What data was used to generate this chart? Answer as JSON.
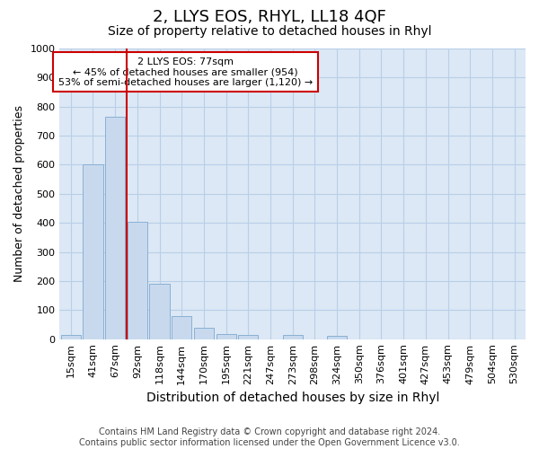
{
  "title": "2, LLYS EOS, RHYL, LL18 4QF",
  "subtitle": "Size of property relative to detached houses in Rhyl",
  "xlabel": "Distribution of detached houses by size in Rhyl",
  "ylabel": "Number of detached properties",
  "categories": [
    "15sqm",
    "41sqm",
    "67sqm",
    "92sqm",
    "118sqm",
    "144sqm",
    "170sqm",
    "195sqm",
    "221sqm",
    "247sqm",
    "273sqm",
    "298sqm",
    "324sqm",
    "350sqm",
    "376sqm",
    "401sqm",
    "427sqm",
    "453sqm",
    "479sqm",
    "504sqm",
    "530sqm"
  ],
  "values": [
    15,
    600,
    765,
    405,
    190,
    78,
    40,
    18,
    15,
    0,
    13,
    0,
    10,
    0,
    0,
    0,
    0,
    0,
    0,
    0,
    0
  ],
  "bar_color": "#c8d9ee",
  "bar_edgecolor": "#8ab0d4",
  "ylim_max": 1000,
  "yticks": [
    0,
    100,
    200,
    300,
    400,
    500,
    600,
    700,
    800,
    900,
    1000
  ],
  "vline_x": 2.5,
  "vline_color": "#cc0000",
  "annotation_line1": "2 LLYS EOS: 77sqm",
  "annotation_line2": "← 45% of detached houses are smaller (954)",
  "annotation_line3": "53% of semi-detached houses are larger (1,120) →",
  "annotation_box_edgecolor": "#cc0000",
  "footer_line1": "Contains HM Land Registry data © Crown copyright and database right 2024.",
  "footer_line2": "Contains public sector information licensed under the Open Government Licence v3.0.",
  "fig_bg_color": "#ffffff",
  "plot_bg_color": "#dce8f5",
  "grid_color": "#b8cfe8",
  "title_fontsize": 13,
  "subtitle_fontsize": 10,
  "ylabel_fontsize": 9,
  "xlabel_fontsize": 10,
  "tick_fontsize": 8,
  "annotation_fontsize": 8,
  "footer_fontsize": 7
}
